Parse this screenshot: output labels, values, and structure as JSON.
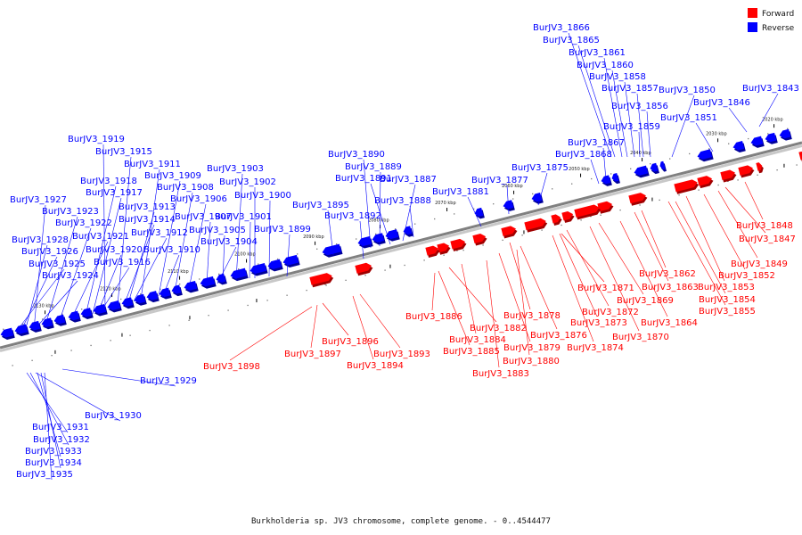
{
  "caption": "Burkholderia sp. JV3 chromosome, complete genome. - 0..4544477",
  "colors": {
    "forward": "#ff0000",
    "reverse": "#0000ff",
    "axis": "#808080"
  },
  "legend": [
    {
      "name": "Forward",
      "color": "#ff0000"
    },
    {
      "name": "Reverse",
      "color": "#0000ff"
    }
  ],
  "ticks": [
    "2020 kbp",
    "2030 kbp",
    "2040 kbp",
    "2050 kbp",
    "2060 kbp",
    "2070 kbp",
    "2080 kbp",
    "2090 kbp",
    "2100 kbp",
    "2110 kbp",
    "2120 kbp",
    "2130 kbp"
  ],
  "reverse_labels": [
    {
      "text": "BurJV3_1866"
    },
    {
      "text": "BurJV3_1865"
    },
    {
      "text": "BurJV3_1861"
    },
    {
      "text": "BurJV3_1860"
    },
    {
      "text": "BurJV3_1858"
    },
    {
      "text": "BurJV3_1857"
    },
    {
      "text": "BurJV3_1850"
    },
    {
      "text": "BurJV3_1843"
    },
    {
      "text": "BurJV3_1856"
    },
    {
      "text": "BurJV3_1846"
    },
    {
      "text": "BurJV3_1851"
    },
    {
      "text": "BurJV3_1859"
    },
    {
      "text": "BurJV3_1867"
    },
    {
      "text": "BurJV3_1868"
    },
    {
      "text": "BurJV3_1875"
    },
    {
      "text": "BurJV3_1877"
    },
    {
      "text": "BurJV3_1881"
    },
    {
      "text": "BurJV3_1890"
    },
    {
      "text": "BurJV3_1889"
    },
    {
      "text": "BurJV3_1891"
    },
    {
      "text": "BurJV3_1887"
    },
    {
      "text": "BurJV3_1888"
    },
    {
      "text": "BurJV3_1895"
    },
    {
      "text": "BurJV3_1892"
    },
    {
      "text": "BurJV3_1919"
    },
    {
      "text": "BurJV3_1915"
    },
    {
      "text": "BurJV3_1911"
    },
    {
      "text": "BurJV3_1909"
    },
    {
      "text": "BurJV3_1918"
    },
    {
      "text": "BurJV3_1908"
    },
    {
      "text": "BurJV3_1917"
    },
    {
      "text": "BurJV3_1906"
    },
    {
      "text": "BurJV3_1903"
    },
    {
      "text": "BurJV3_1902"
    },
    {
      "text": "BurJV3_1900"
    },
    {
      "text": "BurJV3_1927"
    },
    {
      "text": "BurJV3_1923"
    },
    {
      "text": "BurJV3_1913"
    },
    {
      "text": "BurJV3_1922"
    },
    {
      "text": "BurJV3_1914"
    },
    {
      "text": "BurJV3_1907"
    },
    {
      "text": "BurJV3_1901"
    },
    {
      "text": "BurJV3_1905"
    },
    {
      "text": "BurJV3_1899"
    },
    {
      "text": "BurJV3_1912"
    },
    {
      "text": "BurJV3_1921"
    },
    {
      "text": "BurJV3_1928"
    },
    {
      "text": "BurJV3_1904"
    },
    {
      "text": "BurJV3_1920"
    },
    {
      "text": "BurJV3_1910"
    },
    {
      "text": "BurJV3_1926"
    },
    {
      "text": "BurJV3_1916"
    },
    {
      "text": "BurJV3_1925"
    },
    {
      "text": "BurJV3_1924"
    },
    {
      "text": "BurJV3_1929"
    },
    {
      "text": "BurJV3_1930"
    },
    {
      "text": "BurJV3_1931"
    },
    {
      "text": "BurJV3_1932"
    },
    {
      "text": "BurJV3_1933"
    },
    {
      "text": "BurJV3_1934"
    },
    {
      "text": "BurJV3_1935"
    }
  ],
  "forward_labels": [
    {
      "text": "BurJV3_1847"
    },
    {
      "text": "BurJV3_1848"
    },
    {
      "text": "BurJV3_1849"
    },
    {
      "text": "BurJV3_1852"
    },
    {
      "text": "BurJV3_1853"
    },
    {
      "text": "BurJV3_1862"
    },
    {
      "text": "BurJV3_1854"
    },
    {
      "text": "BurJV3_1855"
    },
    {
      "text": "BurJV3_1863"
    },
    {
      "text": "BurJV3_1871"
    },
    {
      "text": "BurJV3_1869"
    },
    {
      "text": "BurJV3_1872"
    },
    {
      "text": "BurJV3_1864"
    },
    {
      "text": "BurJV3_1873"
    },
    {
      "text": "BurJV3_1870"
    },
    {
      "text": "BurJV3_1878"
    },
    {
      "text": "BurJV3_1876"
    },
    {
      "text": "BurJV3_1874"
    },
    {
      "text": "BurJV3_1886"
    },
    {
      "text": "BurJV3_1882"
    },
    {
      "text": "BurJV3_1884"
    },
    {
      "text": "BurJV3_1879"
    },
    {
      "text": "BurJV3_1885"
    },
    {
      "text": "BurJV3_1880"
    },
    {
      "text": "BurJV3_1883"
    },
    {
      "text": "BurJV3_1896"
    },
    {
      "text": "BurJV3_1897"
    },
    {
      "text": "BurJV3_1893"
    },
    {
      "text": "BurJV3_1898"
    },
    {
      "text": "BurJV3_1894"
    }
  ]
}
